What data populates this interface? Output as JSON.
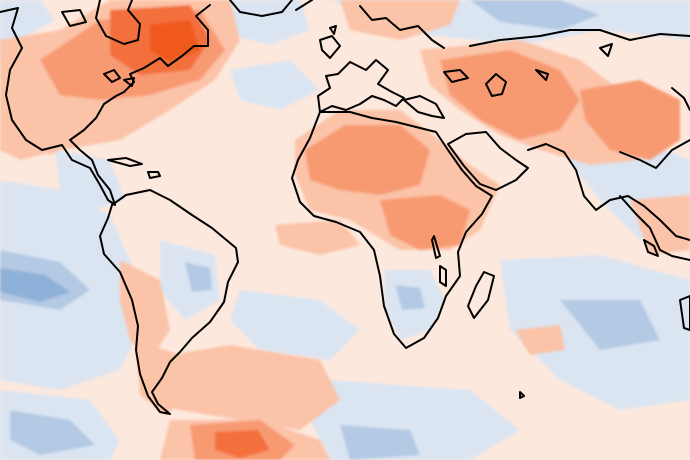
{
  "map": {
    "projection": "equirectangular",
    "colors": {
      "background": "#fde8dd",
      "warm_light": "#fbc3a8",
      "warm_mid": "#f79a72",
      "warm_strong": "#f36f3c",
      "warm_extreme": "#ef5a1f",
      "cool_light": "#dbe5f2",
      "cool_mid": "#b3c9e4",
      "cool_strong": "#8fb0d8",
      "coastline": "#000000"
    }
  }
}
